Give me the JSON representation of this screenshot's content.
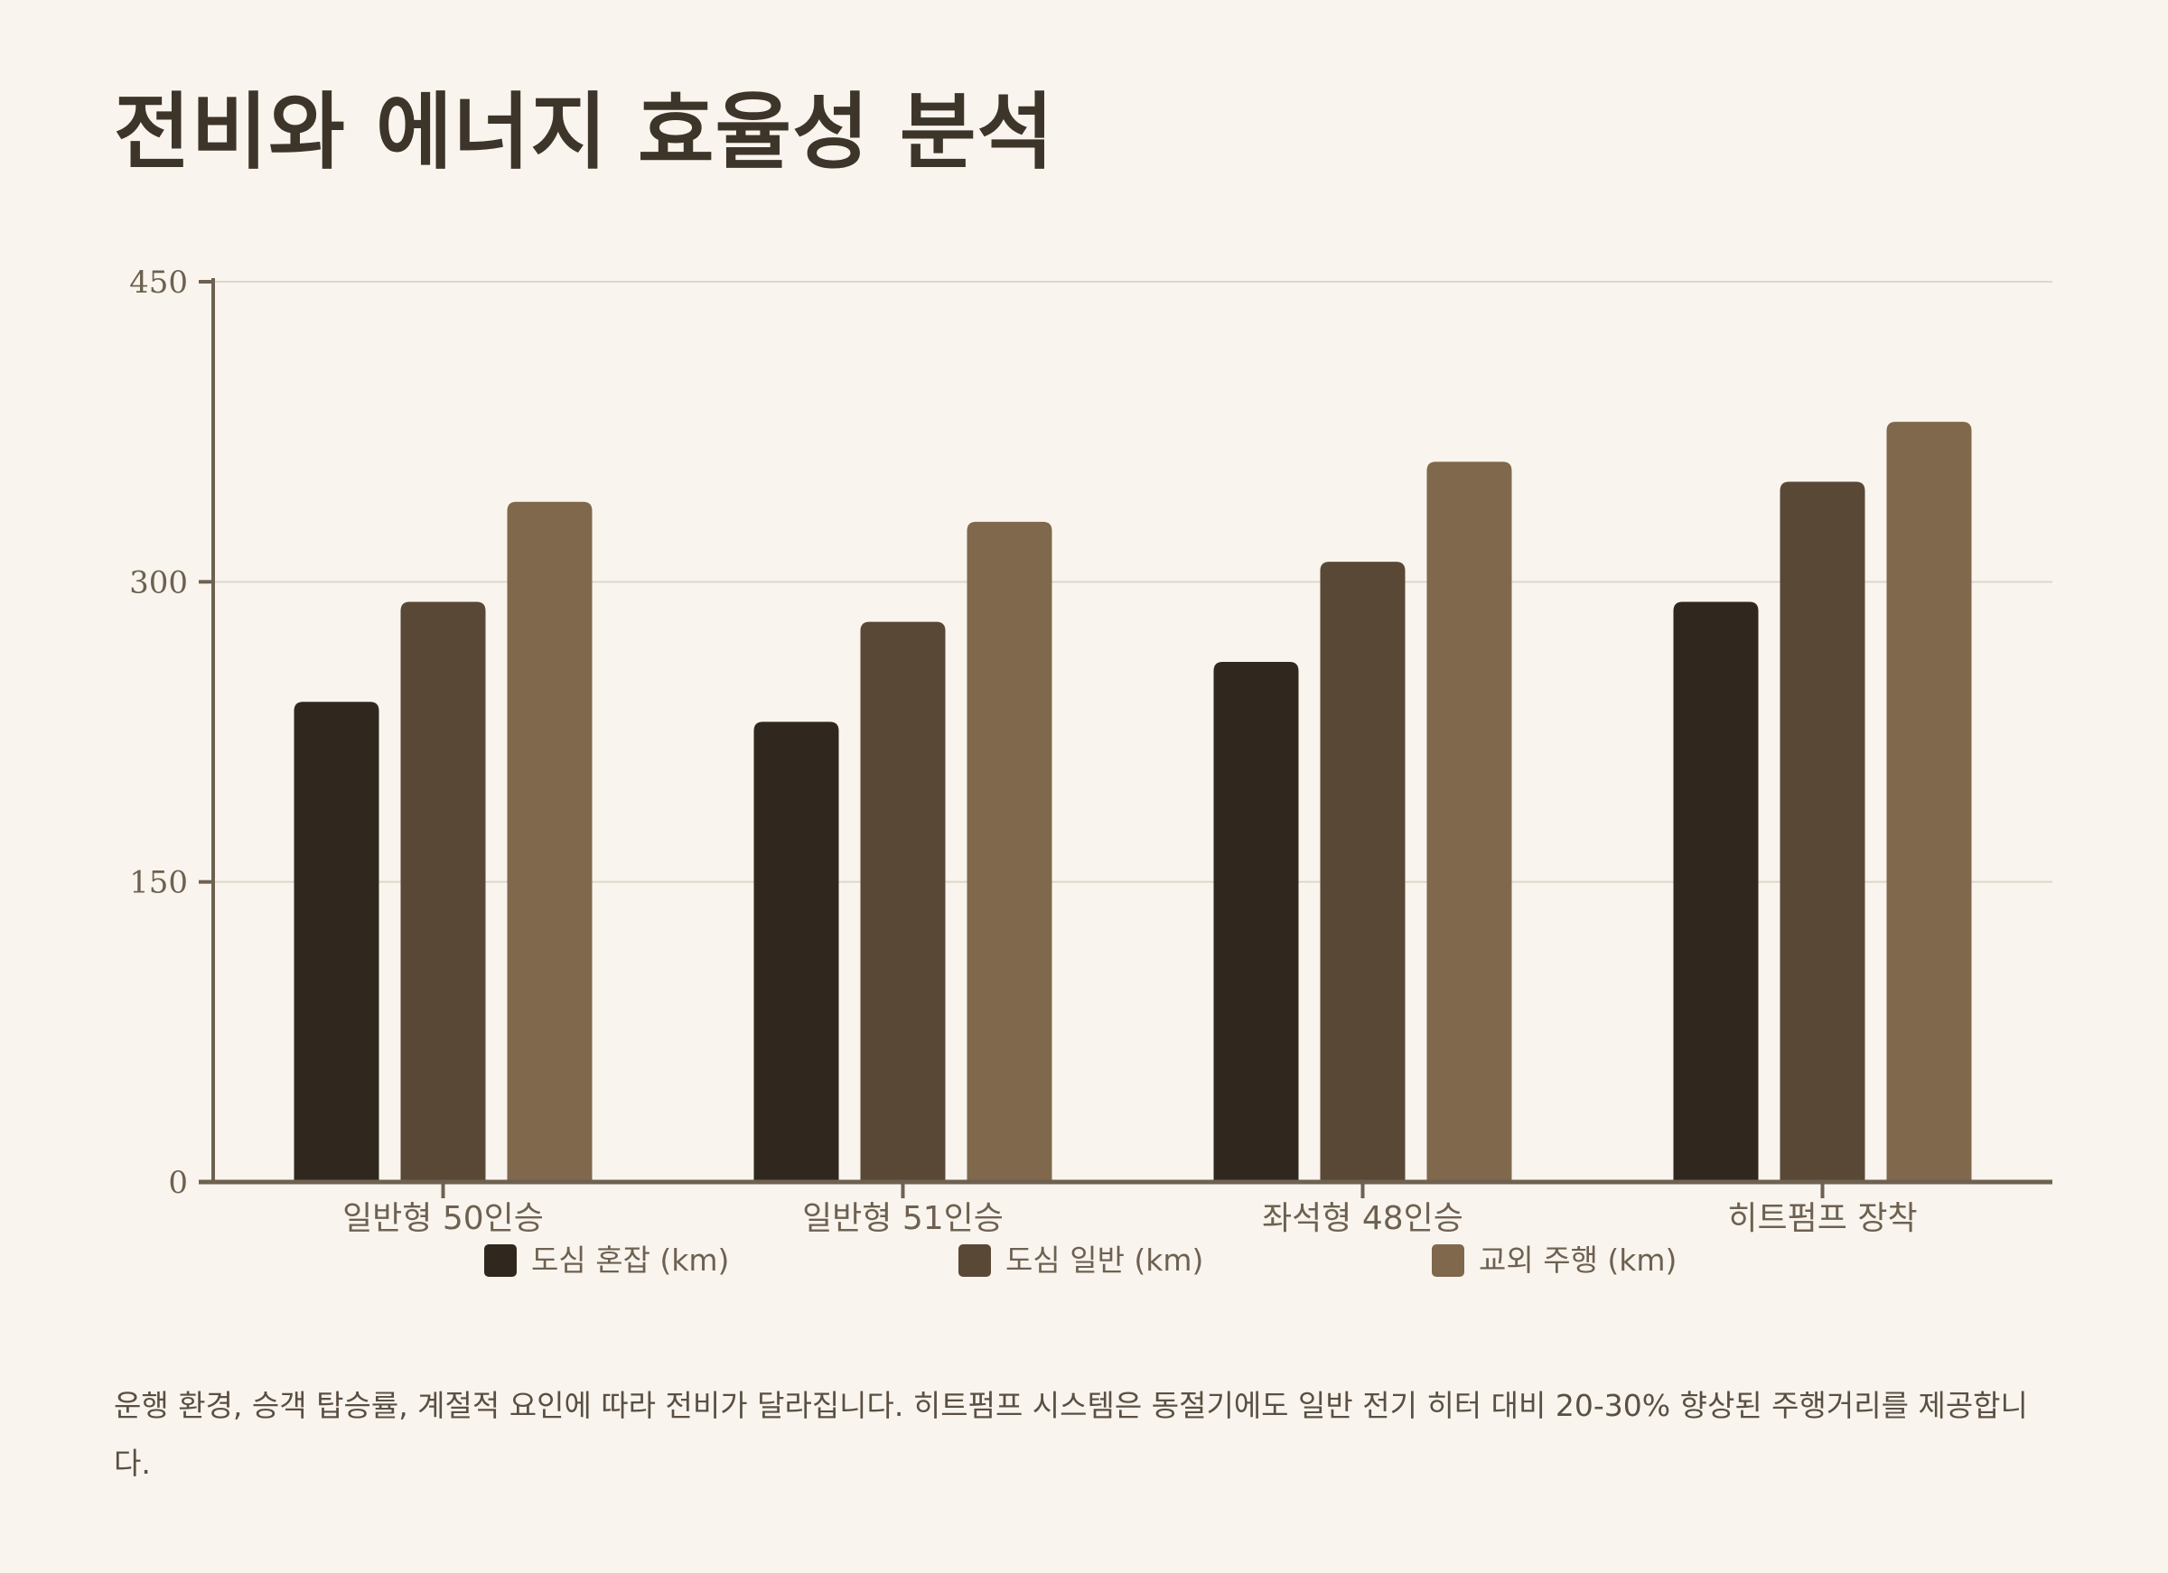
{
  "page": {
    "title": "전비와 에너지 효율성 분석",
    "caption": "운행 환경, 승객 탑승률, 계절적 요인에 따라 전비가 달라집니다. 히트펌프 시스템은 동절기에도 일반 전기 히터 대비 20-30% 향상된 주행거리를 제공합니다."
  },
  "chart_data": {
    "type": "bar",
    "title": "",
    "xlabel": "",
    "ylabel": "",
    "categories": [
      "일반형 50인승",
      "일반형 51인승",
      "좌석형 48인승",
      "히트펌프 장착"
    ],
    "series": [
      {
        "name": "도심 혼잡 (km)",
        "values": [
          240,
          230,
          260,
          290
        ],
        "color": "#30281e"
      },
      {
        "name": "도심 일반 (km)",
        "values": [
          290,
          280,
          310,
          350
        ],
        "color": "#5a4836"
      },
      {
        "name": "교외 주행 (km)",
        "values": [
          340,
          330,
          360,
          380
        ],
        "color": "#80684c"
      }
    ],
    "ylim": [
      0,
      450
    ],
    "yticks": [
      "0",
      "150",
      "300",
      "450"
    ],
    "grid": true,
    "legend_position": "bottom"
  }
}
